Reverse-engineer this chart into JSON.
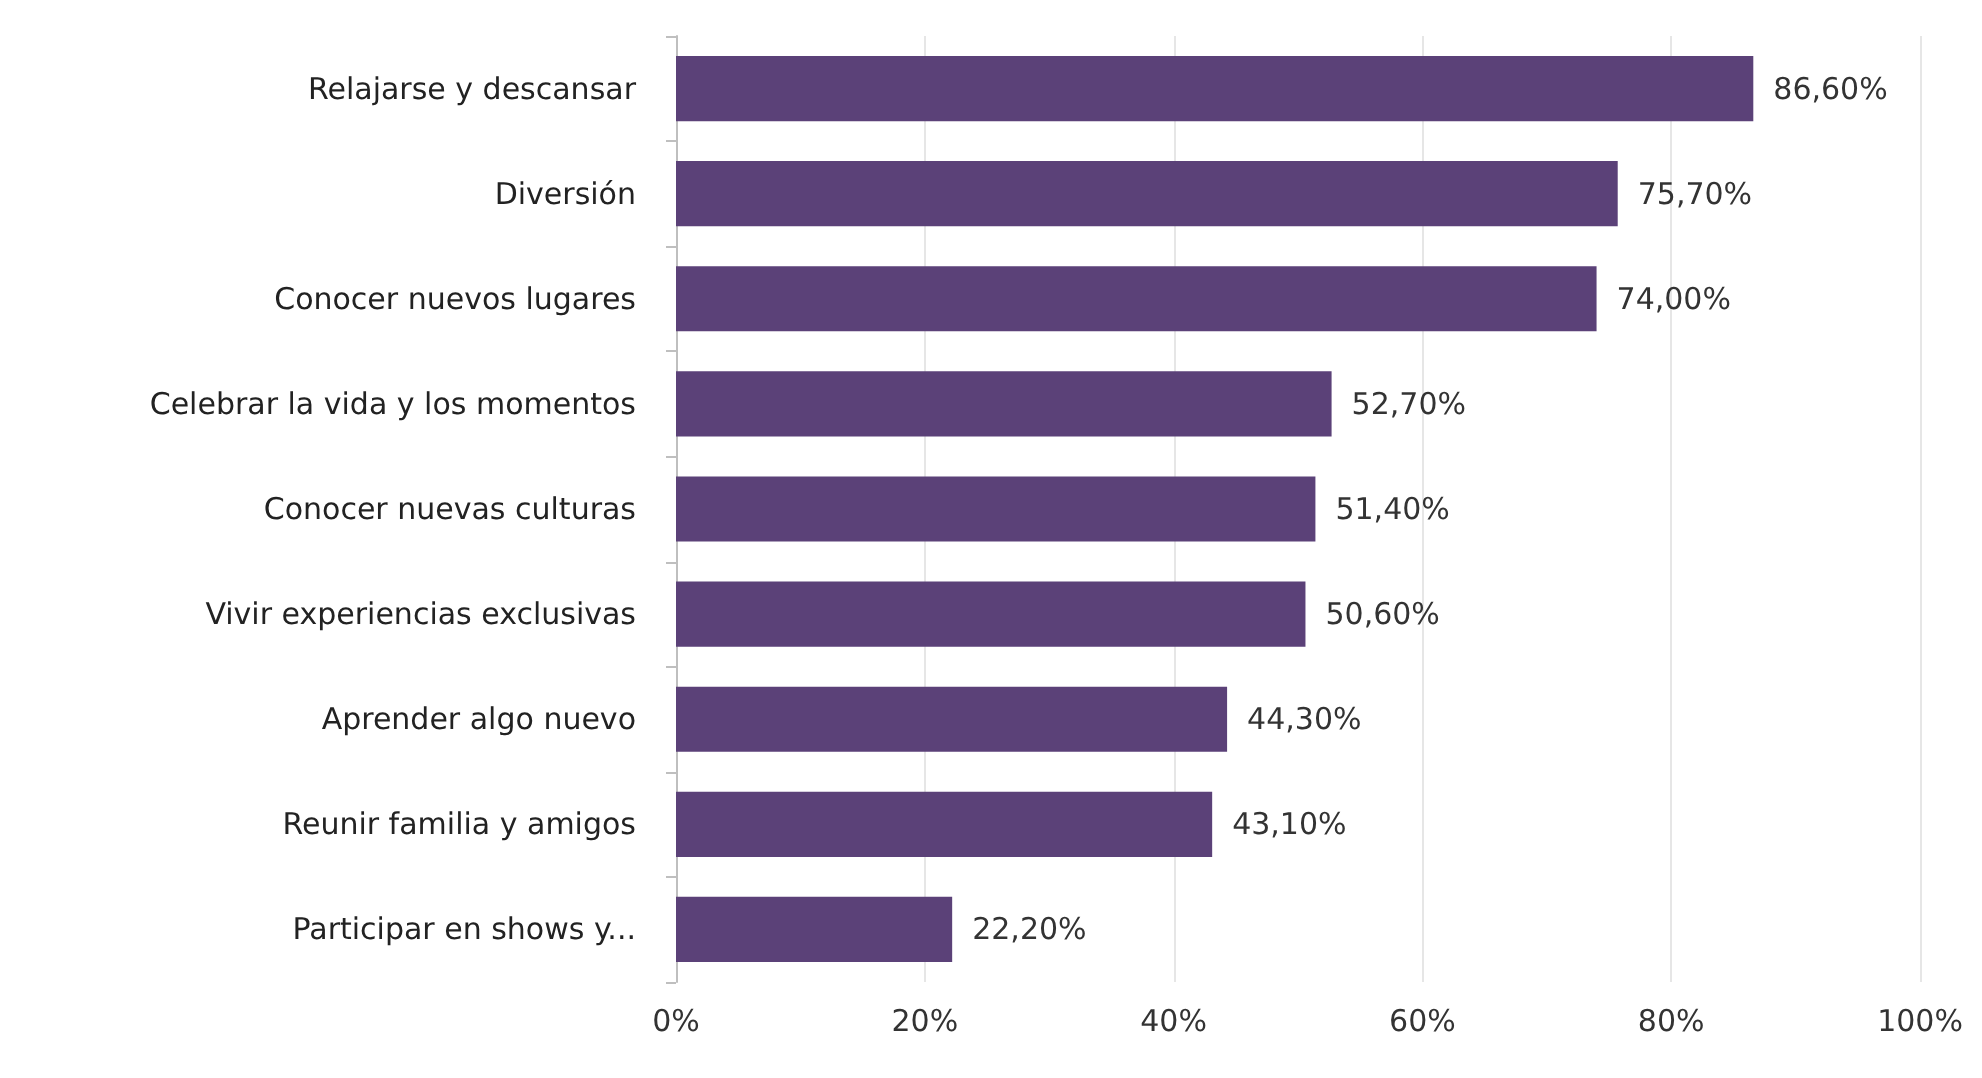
{
  "chart_data": {
    "type": "bar",
    "orientation": "horizontal",
    "categories": [
      "Relajarse y descansar",
      "Diversión",
      "Conocer nuevos lugares",
      "Celebrar la vida y los momentos",
      "Conocer nuevas culturas",
      "Vivir experiencias exclusivas",
      "Aprender algo nuevo",
      "Reunir familia y amigos",
      "Participar en shows y..."
    ],
    "values": [
      86.6,
      75.7,
      74.0,
      52.7,
      51.4,
      50.6,
      44.3,
      43.1,
      22.2
    ],
    "value_labels": [
      "86,60%",
      "75,70%",
      "74,00%",
      "52,70%",
      "51,40%",
      "50,60%",
      "44,30%",
      "43,10%",
      "22,20%"
    ],
    "color": "#5b4178",
    "xlim": [
      0,
      100
    ],
    "xticks": [
      {
        "value": 0,
        "label": "0%"
      },
      {
        "value": 20,
        "label": "20%"
      },
      {
        "value": 40,
        "label": "40%"
      },
      {
        "value": 60,
        "label": "60%"
      },
      {
        "value": 80,
        "label": "80%"
      },
      {
        "value": 100,
        "label": "100%"
      }
    ],
    "grid": "x"
  }
}
